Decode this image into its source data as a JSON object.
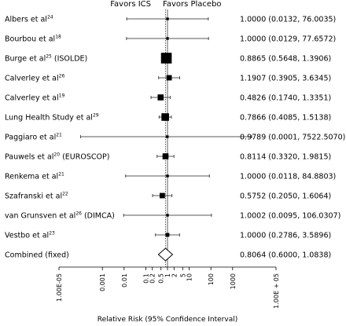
{
  "chart_data": {
    "type": "forest",
    "title": "",
    "header_left": "Favors ICS",
    "header_right": "Favors Placebo",
    "xlabel": "Relative Risk (95% Confidence Interval)",
    "x_scale": "log",
    "xlim": [
      1e-05,
      100000
    ],
    "reference_line": 1,
    "pooled_line": 0.8064,
    "ticks": [
      {
        "value": 1e-05,
        "label": "1.00E-05"
      },
      {
        "value": 0.001,
        "label": "0.001"
      },
      {
        "value": 0.01,
        "label": "0.01"
      },
      {
        "value": 0.1,
        "label": "0.1"
      },
      {
        "value": 0.2,
        "label": "0.2"
      },
      {
        "value": 0.5,
        "label": "0.5"
      },
      {
        "value": 1,
        "label": "1"
      },
      {
        "value": 2,
        "label": "2"
      },
      {
        "value": 5,
        "label": "5"
      },
      {
        "value": 10,
        "label": "10"
      },
      {
        "value": 100,
        "label": "100"
      },
      {
        "value": 1000,
        "label": "1000"
      },
      {
        "value": 100000,
        "label": "1.00E + 05"
      }
    ],
    "studies": [
      {
        "name": "Albers et al",
        "ref": "24",
        "suffix": "",
        "rr": 1.0,
        "low": 0.0132,
        "high": 76.0035,
        "label": "1.0000 (0.0132, 76.0035)",
        "weight": 1
      },
      {
        "name": "Bourbou et al",
        "ref": "18",
        "suffix": "",
        "rr": 1.0,
        "low": 0.0129,
        "high": 77.6572,
        "label": "1.0000 (0.0129, 77.6572)",
        "weight": 1
      },
      {
        "name": "Burge et al",
        "ref": "25",
        "suffix": " (ISOLDE)",
        "rr": 0.8865,
        "low": 0.5648,
        "high": 1.3906,
        "label": "0.8865 (0.5648, 1.3906)",
        "weight": 16
      },
      {
        "name": "Calverley et al",
        "ref": "26",
        "suffix": "",
        "rr": 1.1907,
        "low": 0.3905,
        "high": 3.6345,
        "label": "1.1907 (0.3905, 3.6345)",
        "weight": 4
      },
      {
        "name": "Calverley et al",
        "ref": "19",
        "suffix": "",
        "rr": 0.4826,
        "low": 0.174,
        "high": 1.3351,
        "label": "0.4826 (0.1740, 1.3351)",
        "weight": 5
      },
      {
        "name": "Lung Health Study et al",
        "ref": "29",
        "suffix": "",
        "rr": 0.7866,
        "low": 0.4085,
        "high": 1.5138,
        "label": "0.7866 (0.4085, 1.5138)",
        "weight": 8
      },
      {
        "name": "Paggiaro et al",
        "ref": "21",
        "suffix": "",
        "rr": 0.9789,
        "low": 0.0001,
        "high": 7522.507,
        "label": "0.9789 (0.0001, 7522.5070)",
        "weight": 1
      },
      {
        "name": "Pauwels et al",
        "ref": "20",
        "suffix": " (EUROSCOP)",
        "rr": 0.8114,
        "low": 0.332,
        "high": 1.9815,
        "label": "0.8114 (0.3320, 1.9815)",
        "weight": 5
      },
      {
        "name": "Renkema et al",
        "ref": "21",
        "suffix": "",
        "rr": 1.0,
        "low": 0.0118,
        "high": 84.8803,
        "label": "1.0000 (0.0118, 84.8803)",
        "weight": 1
      },
      {
        "name": "Szafranski et al",
        "ref": "22",
        "suffix": "",
        "rr": 0.5752,
        "low": 0.205,
        "high": 1.6064,
        "label": "0.5752 (0.2050, 1.6064)",
        "weight": 4
      },
      {
        "name": "van Grunsven et al",
        "ref": "26",
        "suffix": " (DIMCA)",
        "rr": 1.0002,
        "low": 0.0095,
        "high": 106.0307,
        "label": "1.0002 (0.0095, 106.0307)",
        "weight": 1
      },
      {
        "name": "Vestbo et al",
        "ref": "23",
        "suffix": "",
        "rr": 1.0,
        "low": 0.2786,
        "high": 3.5896,
        "label": "1.0000 (0.2786, 3.5896)",
        "weight": 2
      }
    ],
    "combined": {
      "name": "Combined (fixed)",
      "rr": 0.8064,
      "low": 0.6,
      "high": 1.0838,
      "label": "0.8064 (0.6000, 1.0838)"
    }
  }
}
